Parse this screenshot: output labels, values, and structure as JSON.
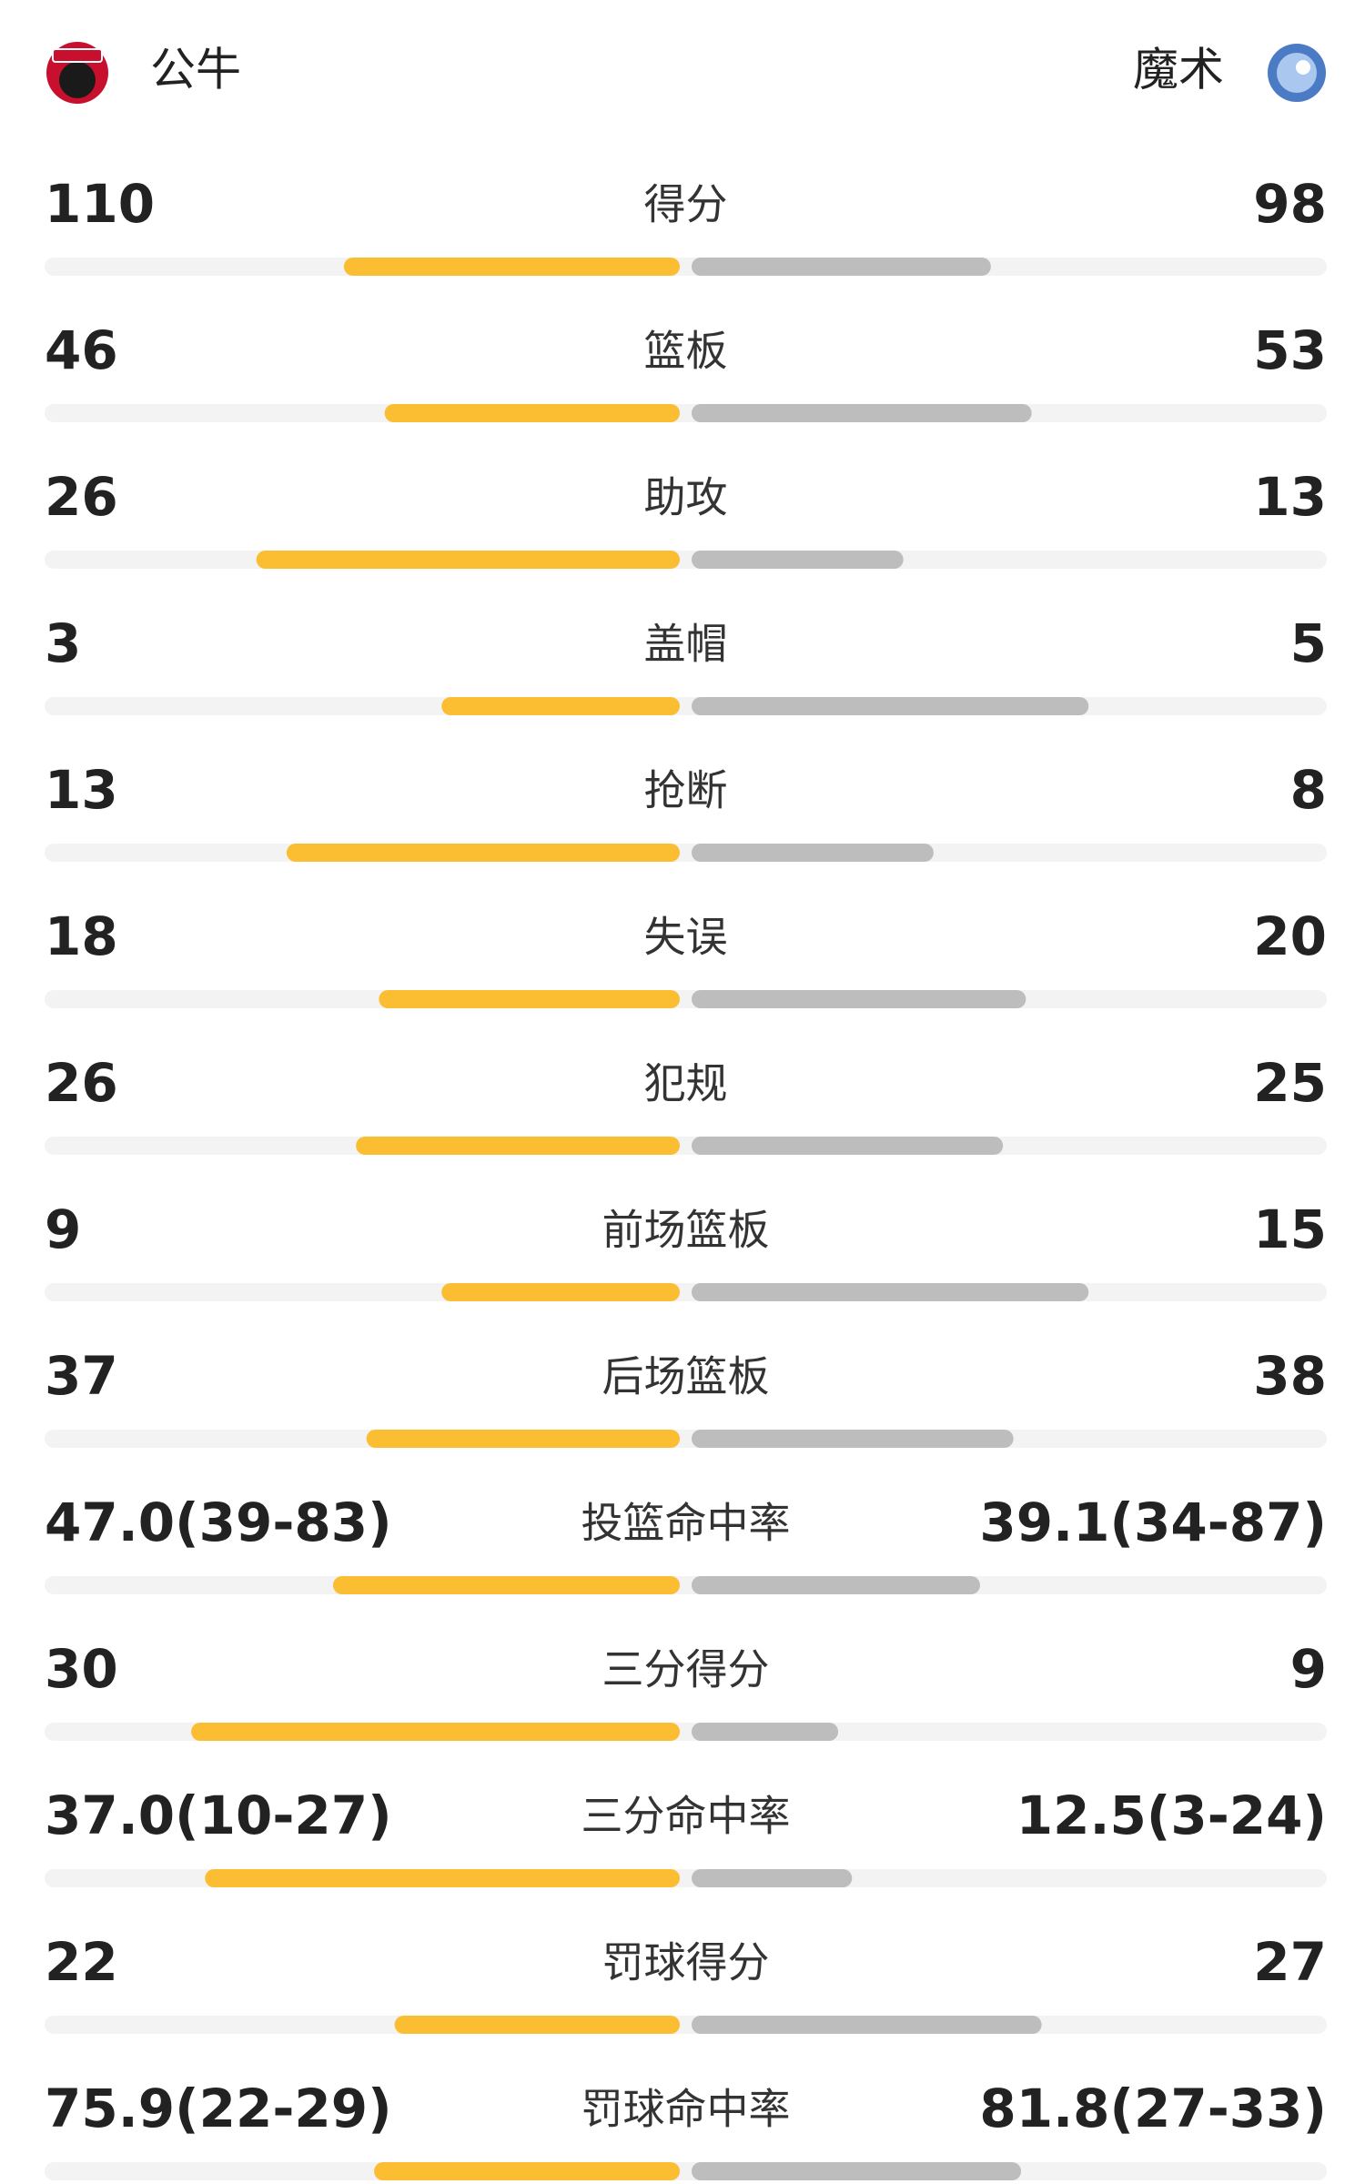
{
  "header": {
    "home": "公牛",
    "away": "魔术"
  },
  "rows": [
    {
      "label": "得分",
      "home": 110,
      "away": 98
    },
    {
      "label": "篮板",
      "home": 46,
      "away": 53
    },
    {
      "label": "助攻",
      "home": 26,
      "away": 13
    },
    {
      "label": "盖帽",
      "home": 3,
      "away": 5
    },
    {
      "label": "抢断",
      "home": 13,
      "away": 8
    },
    {
      "label": "失误",
      "home": 18,
      "away": 20
    },
    {
      "label": "犯规",
      "home": 26,
      "away": 25
    },
    {
      "label": "前场篮板",
      "home": 9,
      "away": 15
    },
    {
      "label": "后场篮板",
      "home": 37,
      "away": 38
    },
    {
      "label": "投篮命中率",
      "home": 47.0,
      "away": 39.1,
      "home_label": "47.0(39-83)",
      "away_label": "39.1(34-87)"
    },
    {
      "label": "三分得分",
      "home": 30,
      "away": 9
    },
    {
      "label": "三分命中率",
      "home": 37.0,
      "away": 12.5,
      "home_label": "37.0(10-27)",
      "away_label": "12.5(3-24)"
    },
    {
      "label": "罚球得分",
      "home": 22,
      "away": 27
    },
    {
      "label": "罚球命中率",
      "home": 75.9,
      "away": 81.8,
      "home_label": "75.9(22-29)",
      "away_label": "81.8(27-33)"
    }
  ]
}
